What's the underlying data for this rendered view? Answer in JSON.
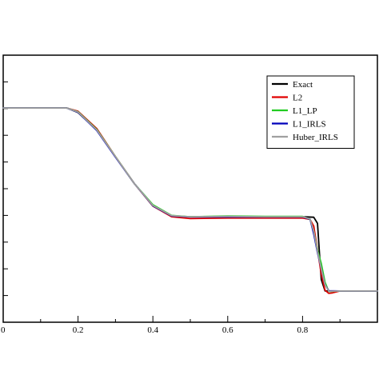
{
  "chart_data": {
    "type": "line",
    "title": "",
    "xlabel": "",
    "ylabel": "",
    "xlim": [
      0.0,
      1.0
    ],
    "ylim": [
      0.0,
      1.0
    ],
    "xticks": [
      0.0,
      0.2,
      0.4,
      0.6,
      0.8
    ],
    "xtick_labels": [
      "0",
      "0.2",
      "0.4",
      "0.6",
      "0.8"
    ],
    "yticks": [
      0.1,
      0.2,
      0.3,
      0.4,
      0.5,
      0.6,
      0.7,
      0.8,
      0.9
    ],
    "grid": false,
    "legend": "top-right",
    "series": [
      {
        "name": "Exact",
        "color": "#000000",
        "x": [
          0.0,
          0.17,
          0.2,
          0.25,
          0.3,
          0.35,
          0.4,
          0.45,
          0.5,
          0.6,
          0.7,
          0.8,
          0.83,
          0.84,
          0.845,
          0.85,
          0.86,
          0.9,
          1.0
        ],
        "y": [
          0.802,
          0.802,
          0.785,
          0.72,
          0.62,
          0.52,
          0.435,
          0.398,
          0.395,
          0.395,
          0.395,
          0.395,
          0.393,
          0.37,
          0.26,
          0.16,
          0.117,
          0.117,
          0.117
        ]
      },
      {
        "name": "L2",
        "color": "#e00000",
        "x": [
          0.0,
          0.17,
          0.2,
          0.25,
          0.3,
          0.35,
          0.4,
          0.45,
          0.5,
          0.6,
          0.7,
          0.8,
          0.82,
          0.83,
          0.84,
          0.85,
          0.86,
          0.87,
          0.88,
          0.9,
          1.0
        ],
        "y": [
          0.802,
          0.802,
          0.79,
          0.725,
          0.62,
          0.52,
          0.435,
          0.395,
          0.388,
          0.39,
          0.39,
          0.39,
          0.385,
          0.36,
          0.27,
          0.18,
          0.12,
          0.108,
          0.11,
          0.117,
          0.117
        ]
      },
      {
        "name": "L1_LP",
        "color": "#22cc22",
        "x": [
          0.0,
          0.17,
          0.2,
          0.25,
          0.3,
          0.35,
          0.4,
          0.45,
          0.5,
          0.6,
          0.7,
          0.8,
          0.82,
          0.83,
          0.84,
          0.85,
          0.86,
          0.87,
          0.9,
          1.0
        ],
        "y": [
          0.802,
          0.802,
          0.788,
          0.722,
          0.62,
          0.52,
          0.44,
          0.4,
          0.395,
          0.398,
          0.396,
          0.396,
          0.385,
          0.34,
          0.27,
          0.22,
          0.15,
          0.115,
          0.117,
          0.117
        ]
      },
      {
        "name": "L1_IRLS",
        "color": "#0000bb",
        "x": [
          0.0,
          0.17,
          0.2,
          0.25,
          0.3,
          0.35,
          0.4,
          0.45,
          0.5,
          0.6,
          0.7,
          0.8,
          0.82,
          0.83,
          0.84,
          0.85,
          0.86,
          0.87,
          0.9,
          1.0
        ],
        "y": [
          0.802,
          0.802,
          0.786,
          0.718,
          0.618,
          0.52,
          0.436,
          0.398,
          0.394,
          0.394,
          0.394,
          0.394,
          0.386,
          0.33,
          0.26,
          0.2,
          0.14,
          0.118,
          0.117,
          0.117
        ]
      },
      {
        "name": "Huber_IRLS",
        "color": "#a0a0a0",
        "x": [
          0.0,
          0.17,
          0.2,
          0.25,
          0.3,
          0.35,
          0.4,
          0.45,
          0.5,
          0.6,
          0.7,
          0.8,
          0.82,
          0.83,
          0.84,
          0.85,
          0.86,
          0.87,
          0.9,
          1.0
        ],
        "y": [
          0.802,
          0.802,
          0.787,
          0.72,
          0.62,
          0.52,
          0.437,
          0.399,
          0.395,
          0.396,
          0.395,
          0.395,
          0.387,
          0.34,
          0.265,
          0.2,
          0.14,
          0.116,
          0.117,
          0.117
        ]
      }
    ]
  }
}
